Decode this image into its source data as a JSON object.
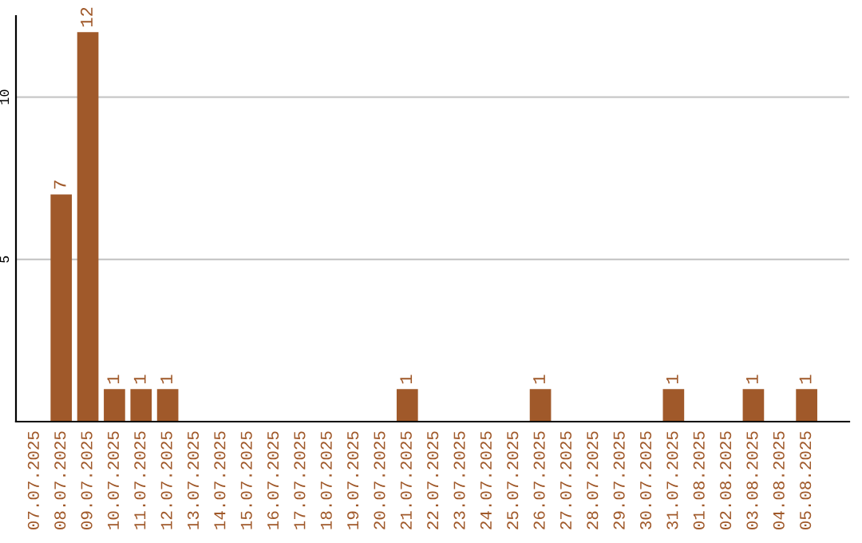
{
  "chart_data": {
    "type": "bar",
    "categories": [
      "07.07.2025",
      "08.07.2025",
      "09.07.2025",
      "10.07.2025",
      "11.07.2025",
      "12.07.2025",
      "13.07.2025",
      "14.07.2025",
      "15.07.2025",
      "16.07.2025",
      "17.07.2025",
      "18.07.2025",
      "19.07.2025",
      "20.07.2025",
      "21.07.2025",
      "22.07.2025",
      "23.07.2025",
      "24.07.2025",
      "25.07.2025",
      "26.07.2025",
      "27.07.2025",
      "28.07.2025",
      "29.07.2025",
      "30.07.2025",
      "31.07.2025",
      "01.08.2025",
      "02.08.2025",
      "03.08.2025",
      "04.08.2025",
      "05.08.2025"
    ],
    "values": [
      0,
      7,
      12,
      1,
      1,
      1,
      0,
      0,
      0,
      0,
      0,
      0,
      0,
      0,
      1,
      0,
      0,
      0,
      0,
      1,
      0,
      0,
      0,
      0,
      1,
      0,
      0,
      1,
      0,
      1
    ],
    "value_labels": [
      null,
      "7",
      "12",
      "1",
      "1",
      "1",
      null,
      null,
      null,
      null,
      null,
      null,
      null,
      null,
      "1",
      null,
      null,
      null,
      null,
      "1",
      null,
      null,
      null,
      null,
      "1",
      null,
      null,
      "1",
      null,
      "1"
    ],
    "color": "#a0592a",
    "ylim": [
      0,
      12.5
    ],
    "yticks": [
      5,
      10
    ],
    "grid": "y"
  }
}
